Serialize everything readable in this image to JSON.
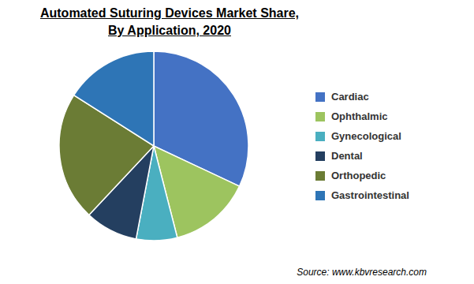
{
  "chart_data": {
    "type": "pie",
    "title": "Automated Suturing Devices Market Share,",
    "subtitle": "By Application, 2020",
    "categories": [
      "Cardiac",
      "Ophthalmic",
      "Gynecological",
      "Dental",
      "Orthopedic",
      "Gastrointestinal"
    ],
    "values": [
      32,
      14,
      7,
      9,
      22,
      16
    ],
    "colors": [
      "#4472C4",
      "#9DC45F",
      "#4AAFC0",
      "#243F60",
      "#6B7C35",
      "#2E75B6"
    ],
    "legend": "right",
    "annotations": [
      "Source: www.kbvresearch.com"
    ]
  }
}
